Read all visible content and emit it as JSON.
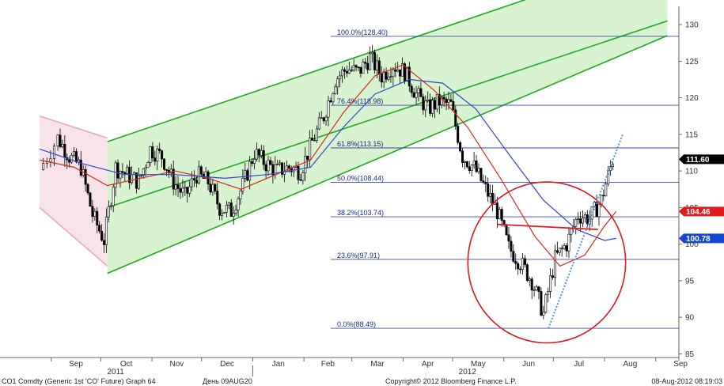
{
  "chart_data": {
    "type": "candlestick",
    "x_month_labels": [
      "Sep",
      "Oct",
      "Nov",
      "Dec",
      "Jan",
      "Feb",
      "Mar",
      "Apr",
      "May",
      "Jun",
      "Jul",
      "Aug",
      "Sep"
    ],
    "year_labels": [
      "2011",
      "2012"
    ],
    "y_ticks": [
      85,
      90,
      95,
      100,
      105,
      110,
      115,
      120,
      125,
      130
    ],
    "ylim": [
      84.5,
      132.5
    ],
    "grid": false,
    "fib_levels": [
      {
        "label": "100.0%(128.40)",
        "value": 128.4
      },
      {
        "label": "76.4%(118.98)",
        "value": 118.98
      },
      {
        "label": "61.8%(113.15)",
        "value": 113.15
      },
      {
        "label": "50.0%(108.44)",
        "value": 108.44
      },
      {
        "label": "38.2%(103.74)",
        "value": 103.74
      },
      {
        "label": "23.6%(97.91)",
        "value": 97.91
      },
      {
        "label": "0.0%(88.49)",
        "value": 88.49
      }
    ],
    "price_badges": [
      {
        "label": "111.60",
        "value": 111.6,
        "color": "#000000"
      },
      {
        "label": "104.46",
        "value": 104.46,
        "color": "#e11b1b"
      },
      {
        "label": "100.78",
        "value": 100.78,
        "color": "#1546d6"
      }
    ],
    "series": [
      {
        "kind": "price",
        "color": "#000000",
        "points": [
          {
            "date": "2011-08-25",
            "close": 110.2
          },
          {
            "date": "2011-09-05",
            "close": 114.5
          },
          {
            "date": "2011-09-12",
            "close": 112.0
          },
          {
            "date": "2011-09-19",
            "close": 110.5
          },
          {
            "date": "2011-09-26",
            "close": 104.0
          },
          {
            "date": "2011-10-03",
            "close": 100.5
          },
          {
            "date": "2011-10-10",
            "close": 110.5
          },
          {
            "date": "2011-10-17",
            "close": 109.5
          },
          {
            "date": "2011-10-24",
            "close": 108.5
          },
          {
            "date": "2011-10-31",
            "close": 113.0
          },
          {
            "date": "2011-11-07",
            "close": 112.0
          },
          {
            "date": "2011-11-14",
            "close": 108.5
          },
          {
            "date": "2011-11-21",
            "close": 106.5
          },
          {
            "date": "2011-11-28",
            "close": 109.5
          },
          {
            "date": "2011-12-05",
            "close": 108.5
          },
          {
            "date": "2011-12-12",
            "close": 105.0
          },
          {
            "date": "2011-12-19",
            "close": 104.5
          },
          {
            "date": "2011-12-26",
            "close": 108.0
          },
          {
            "date": "2012-01-02",
            "close": 112.5
          },
          {
            "date": "2012-01-09",
            "close": 111.0
          },
          {
            "date": "2012-01-16",
            "close": 110.0
          },
          {
            "date": "2012-01-23",
            "close": 110.5
          },
          {
            "date": "2012-01-30",
            "close": 110.0
          },
          {
            "date": "2012-02-06",
            "close": 114.0
          },
          {
            "date": "2012-02-13",
            "close": 117.5
          },
          {
            "date": "2012-02-20",
            "close": 122.5
          },
          {
            "date": "2012-02-27",
            "close": 124.0
          },
          {
            "date": "2012-03-05",
            "close": 123.5
          },
          {
            "date": "2012-03-12",
            "close": 125.5
          },
          {
            "date": "2012-03-19",
            "close": 123.0
          },
          {
            "date": "2012-03-26",
            "close": 124.5
          },
          {
            "date": "2012-04-02",
            "close": 123.5
          },
          {
            "date": "2012-04-09",
            "close": 120.5
          },
          {
            "date": "2012-04-16",
            "close": 118.5
          },
          {
            "date": "2012-04-23",
            "close": 119.5
          },
          {
            "date": "2012-04-30",
            "close": 119.0
          },
          {
            "date": "2012-05-07",
            "close": 112.0
          },
          {
            "date": "2012-05-14",
            "close": 110.5
          },
          {
            "date": "2012-05-21",
            "close": 107.5
          },
          {
            "date": "2012-05-28",
            "close": 104.5
          },
          {
            "date": "2012-06-04",
            "close": 99.5
          },
          {
            "date": "2012-06-11",
            "close": 97.5
          },
          {
            "date": "2012-06-18",
            "close": 95.0
          },
          {
            "date": "2012-06-25",
            "close": 90.5
          },
          {
            "date": "2012-07-02",
            "close": 98.0
          },
          {
            "date": "2012-07-09",
            "close": 100.0
          },
          {
            "date": "2012-07-16",
            "close": 104.0
          },
          {
            "date": "2012-07-23",
            "close": 103.5
          },
          {
            "date": "2012-07-30",
            "close": 106.0
          },
          {
            "date": "2012-08-06",
            "close": 111.6
          }
        ]
      },
      {
        "kind": "moving-average",
        "color": "#d42a1e",
        "points": [
          {
            "date": "2011-08-25",
            "value": 111.5
          },
          {
            "date": "2011-09-15",
            "value": 110.5
          },
          {
            "date": "2011-10-05",
            "value": 108.0
          },
          {
            "date": "2011-10-25",
            "value": 109.0
          },
          {
            "date": "2011-11-15",
            "value": 110.0
          },
          {
            "date": "2011-12-05",
            "value": 109.0
          },
          {
            "date": "2011-12-25",
            "value": 107.5
          },
          {
            "date": "2012-01-15",
            "value": 109.5
          },
          {
            "date": "2012-02-05",
            "value": 111.5
          },
          {
            "date": "2012-02-25",
            "value": 118.0
          },
          {
            "date": "2012-03-15",
            "value": 123.0
          },
          {
            "date": "2012-04-01",
            "value": 124.5
          },
          {
            "date": "2012-04-20",
            "value": 121.0
          },
          {
            "date": "2012-05-10",
            "value": 116.0
          },
          {
            "date": "2012-05-30",
            "value": 109.0
          },
          {
            "date": "2012-06-20",
            "value": 101.0
          },
          {
            "date": "2012-07-05",
            "value": 97.0
          },
          {
            "date": "2012-07-20",
            "value": 98.5
          },
          {
            "date": "2012-08-01",
            "value": 102.5
          },
          {
            "date": "2012-08-08",
            "value": 104.46
          }
        ]
      },
      {
        "kind": "moving-average",
        "color": "#2f48c8",
        "points": [
          {
            "date": "2011-08-25",
            "value": 113.0
          },
          {
            "date": "2011-09-20",
            "value": 111.0
          },
          {
            "date": "2011-10-15",
            "value": 109.5
          },
          {
            "date": "2011-11-15",
            "value": 109.5
          },
          {
            "date": "2011-12-15",
            "value": 109.0
          },
          {
            "date": "2012-01-10",
            "value": 109.5
          },
          {
            "date": "2012-02-05",
            "value": 110.5
          },
          {
            "date": "2012-02-25",
            "value": 116.0
          },
          {
            "date": "2012-03-15",
            "value": 120.5
          },
          {
            "date": "2012-04-05",
            "value": 122.5
          },
          {
            "date": "2012-04-25",
            "value": 122.0
          },
          {
            "date": "2012-05-15",
            "value": 118.5
          },
          {
            "date": "2012-06-05",
            "value": 112.0
          },
          {
            "date": "2012-06-25",
            "value": 106.0
          },
          {
            "date": "2012-07-15",
            "value": 102.0
          },
          {
            "date": "2012-08-01",
            "value": 100.5
          },
          {
            "date": "2012-08-08",
            "value": 100.78
          }
        ]
      }
    ],
    "annotations": [
      {
        "kind": "channel",
        "color": "#e7a9bd",
        "fill": "#f9e3ea",
        "start": "2011-08-25",
        "end": "2011-10-05",
        "upper": [
          117.5,
          114.5
        ],
        "lower": [
          105.0,
          97.0
        ]
      },
      {
        "kind": "channel",
        "color": "#22a822",
        "fill": "#d8f3d0",
        "start": "2011-10-05",
        "end": "2012-09-08",
        "upper": [
          114.0,
          140.0
        ],
        "middle": [
          105.0,
          130.5
        ],
        "lower": [
          96.0,
          128.5
        ]
      },
      {
        "kind": "circle",
        "color": "#d9191c",
        "center_date": "2012-06-27",
        "center_value": 97.5,
        "radius_value": 11.0
      },
      {
        "kind": "line",
        "color": "#e11b1b",
        "from": {
          "date": "2012-05-28",
          "value": 102.7
        },
        "to": {
          "date": "2012-07-28",
          "value": 102.0
        }
      },
      {
        "kind": "dotted-line",
        "color": "#5a8fe0",
        "from": {
          "date": "2012-06-28",
          "value": 88.5
        },
        "to": {
          "date": "2012-08-12",
          "value": 115.0
        }
      }
    ]
  },
  "footer": {
    "left": "CO1 Comdty (Generic 1st 'CO' Future) Graph 64",
    "middle": "День 09AUG20",
    "center": "Copyright© 2012 Bloomberg Finance L.P.",
    "right": "08-Aug-2012 08:19:03"
  }
}
